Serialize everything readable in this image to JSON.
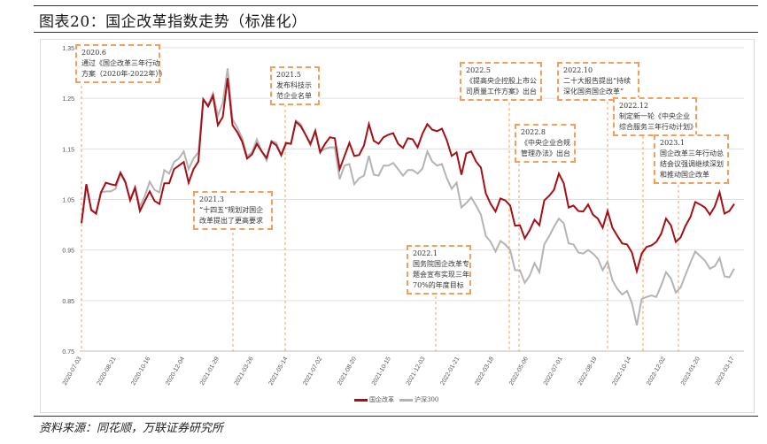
{
  "header": {
    "title": "图表20：国企改革指数走势（标准化）"
  },
  "footer": {
    "source": "资料来源：同花顺，万联证券研究所"
  },
  "colors": {
    "series1": "#a50f15",
    "series2": "#b4b4b4",
    "annotation": "#f5a05a",
    "grid": "#e0e0e0"
  },
  "annotations": [
    {
      "date": "2020.6",
      "lines": [
        "通过《国企改革三年行动",
        "方案（2020年-2022年）》"
      ]
    },
    {
      "date": "2021.3",
      "lines": [
        "“十四五”规划对国企",
        "改革提出了更高要求"
      ]
    },
    {
      "date": "2021.5",
      "lines": [
        "发布科技示",
        "范企业名单"
      ]
    },
    {
      "date": "2022.1",
      "lines": [
        "国务院国企改革专",
        "题会宣布实现三年",
        "70%的年度目标"
      ]
    },
    {
      "date": "2022.5",
      "lines": [
        "《提高央企控股上市公",
        "司质量工作方案》出台"
      ]
    },
    {
      "date": "2022.8",
      "lines": [
        "《中央企业合规",
        "管理办法》出台"
      ]
    },
    {
      "date": "2022.10",
      "lines": [
        "二十大报告提出“持续",
        "深化国资国企改革”"
      ]
    },
    {
      "date": "2022.12",
      "lines": [
        "制定新一轮《中央企业",
        "综合服务三年行动计划》"
      ]
    },
    {
      "date": "2023.1",
      "lines": [
        "国企改革三年行动总",
        "结会议强调继续深划",
        "和推动国企改革"
      ]
    }
  ],
  "chart_data": {
    "type": "line",
    "title": "国企改革指数走势（标准化）",
    "xlabel": "",
    "ylabel": "",
    "ylim": [
      0.75,
      1.35
    ],
    "yticks": [
      "0.75",
      "0.85",
      "0.95",
      "1.05",
      "1.15",
      "1.25",
      "1.35"
    ],
    "xticks": [
      "2020-07-03",
      "2020-08-21",
      "2020-10-16",
      "2020-12-04",
      "2021-01-29",
      "2021-03-26",
      "2021-05-14",
      "2021-07-02",
      "2021-08-20",
      "2021-10-15",
      "2021-12-03",
      "2022-01-21",
      "2022-03-18",
      "2022-05-06",
      "2022-07-01",
      "2022-08-19",
      "2022-10-14",
      "2022-12-02",
      "2023-01-20",
      "2023-03-17"
    ],
    "grid": true,
    "legend": "bottom-center",
    "series": [
      {
        "name": "国企改革",
        "values": [
          1.003,
          1.08,
          1.029,
          1.022,
          1.064,
          1.083,
          1.08,
          1.078,
          1.103,
          1.085,
          1.048,
          1.073,
          1.027,
          1.047,
          1.066,
          1.047,
          1.041,
          1.082,
          1.082,
          1.11,
          1.117,
          1.124,
          1.083,
          1.11,
          1.125,
          1.248,
          1.234,
          1.255,
          1.197,
          1.213,
          1.29,
          1.197,
          1.183,
          1.164,
          1.131,
          1.139,
          1.16,
          1.145,
          1.132,
          1.164,
          1.157,
          1.138,
          1.162,
          1.16,
          1.204,
          1.195,
          1.178,
          1.16,
          1.185,
          1.143,
          1.16,
          1.173,
          1.171,
          1.11,
          1.136,
          1.162,
          1.136,
          1.138,
          1.157,
          1.199,
          1.166,
          1.16,
          1.173,
          1.178,
          1.181,
          1.16,
          1.152,
          1.171,
          1.169,
          1.153,
          1.18,
          1.199,
          1.188,
          1.185,
          1.19,
          1.167,
          1.136,
          1.143,
          1.099,
          1.141,
          1.145,
          1.125,
          1.113,
          1.062,
          1.041,
          1.026,
          1.052,
          1.048,
          1.038,
          0.998,
          0.999,
          0.973,
          0.989,
          1.01,
          0.999,
          1.048,
          1.057,
          1.069,
          1.101,
          1.082,
          1.034,
          1.038,
          1.027,
          1.026,
          1.04,
          1.02,
          1.012,
          0.994,
          1.027,
          0.994,
          0.978,
          0.963,
          0.961,
          0.945,
          0.908,
          0.943,
          0.956,
          0.959,
          0.966,
          0.982,
          1.012,
          0.999,
          0.966,
          0.975,
          0.998,
          1.015,
          1.045,
          1.04,
          1.034,
          1.02,
          1.036,
          1.064,
          1.022,
          1.027,
          1.041
        ]
      },
      {
        "name": "沪深300",
        "values": [
          1.003,
          1.08,
          1.031,
          1.022,
          1.064,
          1.066,
          1.066,
          1.071,
          1.101,
          1.083,
          1.05,
          1.075,
          1.036,
          1.057,
          1.085,
          1.069,
          1.064,
          1.108,
          1.101,
          1.124,
          1.131,
          1.145,
          1.11,
          1.131,
          1.143,
          1.248,
          1.237,
          1.26,
          1.215,
          1.241,
          1.309,
          1.209,
          1.192,
          1.171,
          1.136,
          1.143,
          1.169,
          1.145,
          1.127,
          1.166,
          1.162,
          1.136,
          1.16,
          1.16,
          1.206,
          1.199,
          1.178,
          1.157,
          1.187,
          1.145,
          1.15,
          1.153,
          1.153,
          1.09,
          1.117,
          1.12,
          1.08,
          1.092,
          1.097,
          1.136,
          1.099,
          1.097,
          1.117,
          1.117,
          1.122,
          1.11,
          1.097,
          1.108,
          1.108,
          1.101,
          1.111,
          1.145,
          1.125,
          1.117,
          1.12,
          1.092,
          1.071,
          1.083,
          1.034,
          1.043,
          1.054,
          1.038,
          1.02,
          0.978,
          0.966,
          0.947,
          0.968,
          0.961,
          0.95,
          0.91,
          0.91,
          0.885,
          0.899,
          0.924,
          0.906,
          0.961,
          0.977,
          0.996,
          1.012,
          1.003,
          0.963,
          0.961,
          0.945,
          0.943,
          0.95,
          0.943,
          0.933,
          0.91,
          0.927,
          0.89,
          0.873,
          0.862,
          0.869,
          0.845,
          0.801,
          0.853,
          0.857,
          0.86,
          0.857,
          0.88,
          0.906,
          0.894,
          0.866,
          0.876,
          0.901,
          0.925,
          0.947,
          0.938,
          0.929,
          0.913,
          0.918,
          0.934,
          0.898,
          0.896,
          0.913
        ]
      }
    ]
  }
}
